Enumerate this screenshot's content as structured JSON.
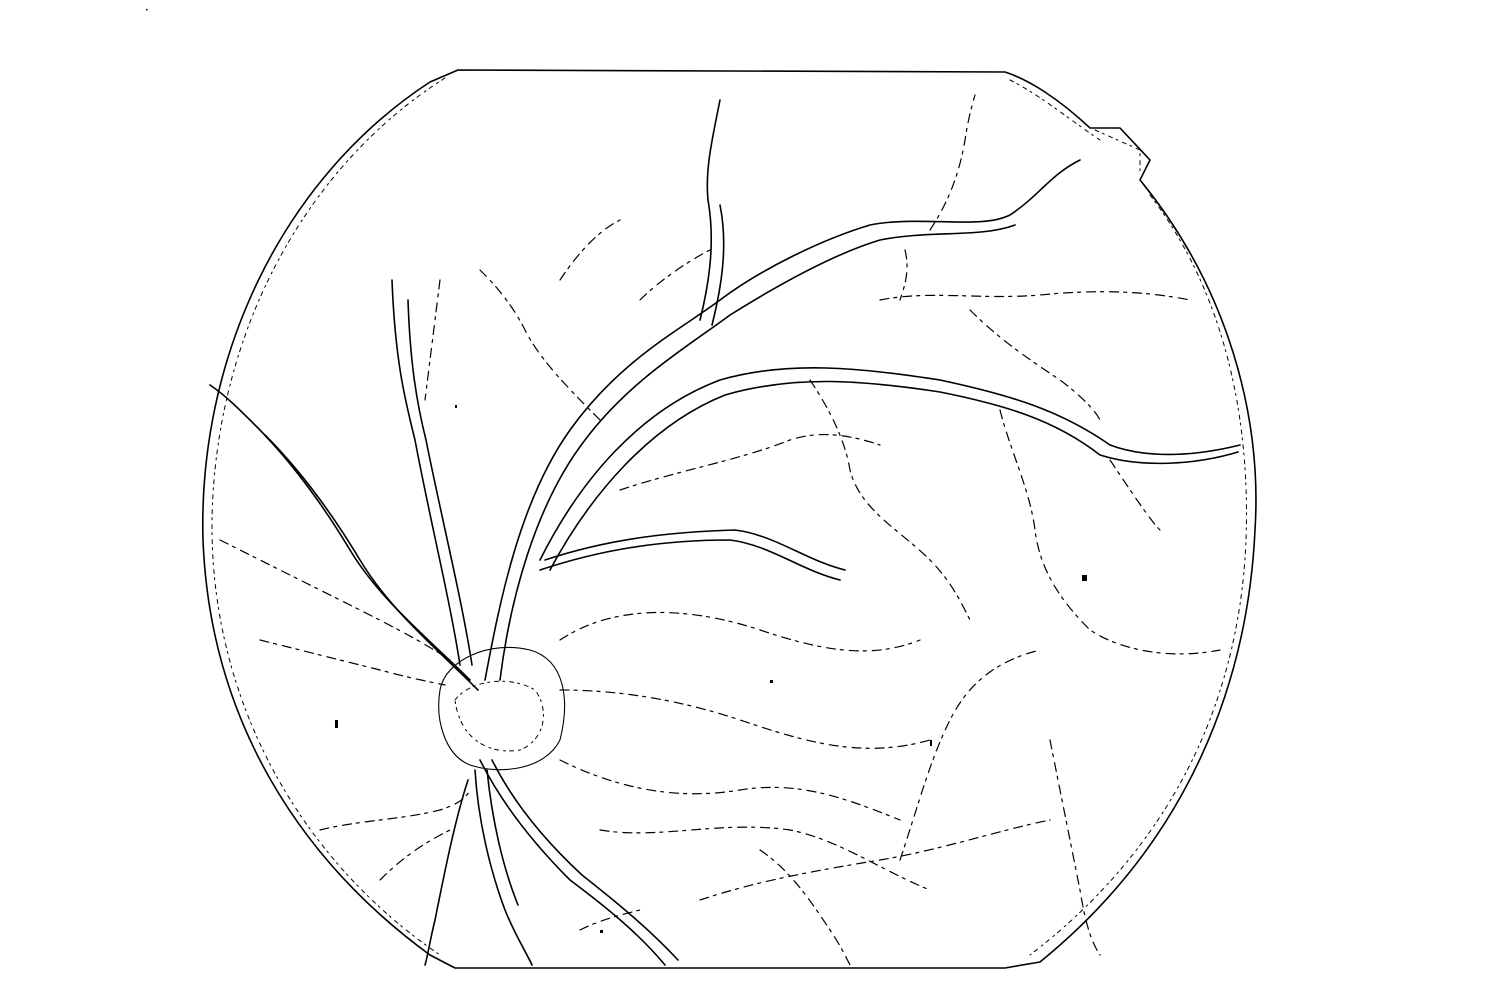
{
  "image": {
    "subject": "",
    "colors": {
      "background": "#ffffff",
      "line": "#000000"
    }
  }
}
